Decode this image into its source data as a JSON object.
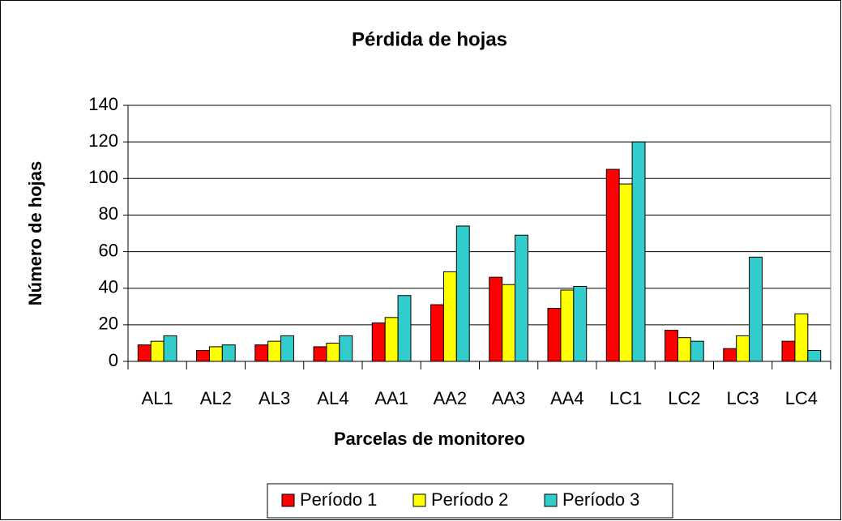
{
  "chart_data": {
    "type": "bar",
    "title": "Pérdida de hojas",
    "xlabel": "Parcelas de monitoreo",
    "ylabel": "Número de hojas",
    "categories": [
      "AL1",
      "AL2",
      "AL3",
      "AL4",
      "AA1",
      "AA2",
      "AA3",
      "AA4",
      "LC1",
      "LC2",
      "LC3",
      "LC4"
    ],
    "series": [
      {
        "name": "Período 1",
        "color": "#ff0000",
        "values": [
          9,
          6,
          9,
          8,
          21,
          31,
          46,
          29,
          105,
          17,
          7,
          11
        ]
      },
      {
        "name": "Período 2",
        "color": "#ffff00",
        "values": [
          11,
          8,
          11,
          10,
          24,
          49,
          42,
          39,
          97,
          13,
          14,
          26
        ]
      },
      {
        "name": "Período 3",
        "color": "#33cccc",
        "values": [
          14,
          9,
          14,
          14,
          36,
          74,
          69,
          41,
          120,
          11,
          57,
          6
        ]
      }
    ],
    "ylim": [
      0,
      140
    ],
    "yticks": [
      0,
      20,
      40,
      60,
      80,
      100,
      120,
      140
    ],
    "grid": true,
    "legend": "bottom"
  }
}
